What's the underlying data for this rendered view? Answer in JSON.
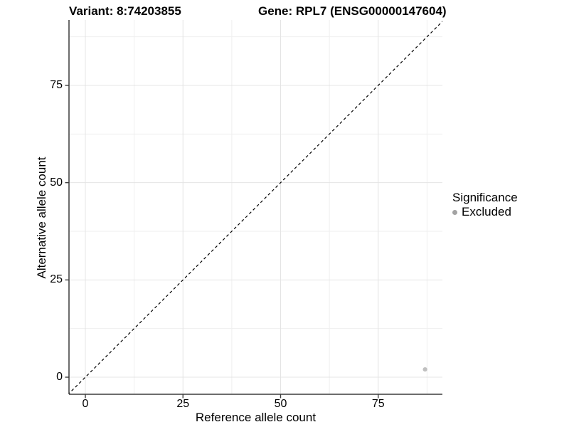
{
  "titles": {
    "variant": "Variant: 8:74203855",
    "gene": "Gene: RPL7 (ENSG00000147604)"
  },
  "chart_data": {
    "type": "scatter",
    "title_left": "Variant: 8:74203855",
    "title_right": "Gene: RPL7 (ENSG00000147604)",
    "xlabel": "Reference allele count",
    "ylabel": "Alternative allele count",
    "x_ticks": [
      "0",
      "25",
      "50",
      "75"
    ],
    "y_ticks": [
      "0",
      "25",
      "50",
      "75"
    ],
    "x_tick_values": [
      0,
      25,
      50,
      75
    ],
    "y_tick_values": [
      0,
      25,
      50,
      75
    ],
    "x_minor_values": [
      12.5,
      37.5,
      62.5,
      87.5
    ],
    "y_minor_values": [
      12.5,
      37.5,
      62.5,
      87.5
    ],
    "xlim": [
      -4.5,
      91.5
    ],
    "ylim": [
      -4.4,
      92
    ],
    "grid": true,
    "reference_line": {
      "kind": "identity y=x",
      "style": "dashed",
      "color": "#000000"
    },
    "points": [
      {
        "x": 87,
        "y": 2,
        "significance": "Excluded"
      }
    ],
    "legend": {
      "position": "right",
      "title": "Significance",
      "items": [
        {
          "label": "Excluded"
        }
      ]
    }
  },
  "colors": {
    "background": "#ffffff",
    "gridline_major": "#e4e4e4",
    "gridline_minor": "#efefef",
    "axis_line": "#3c3c3c",
    "point": "#c0c0c0",
    "legend_marker": "#a3a3a3",
    "text": "#000000"
  }
}
